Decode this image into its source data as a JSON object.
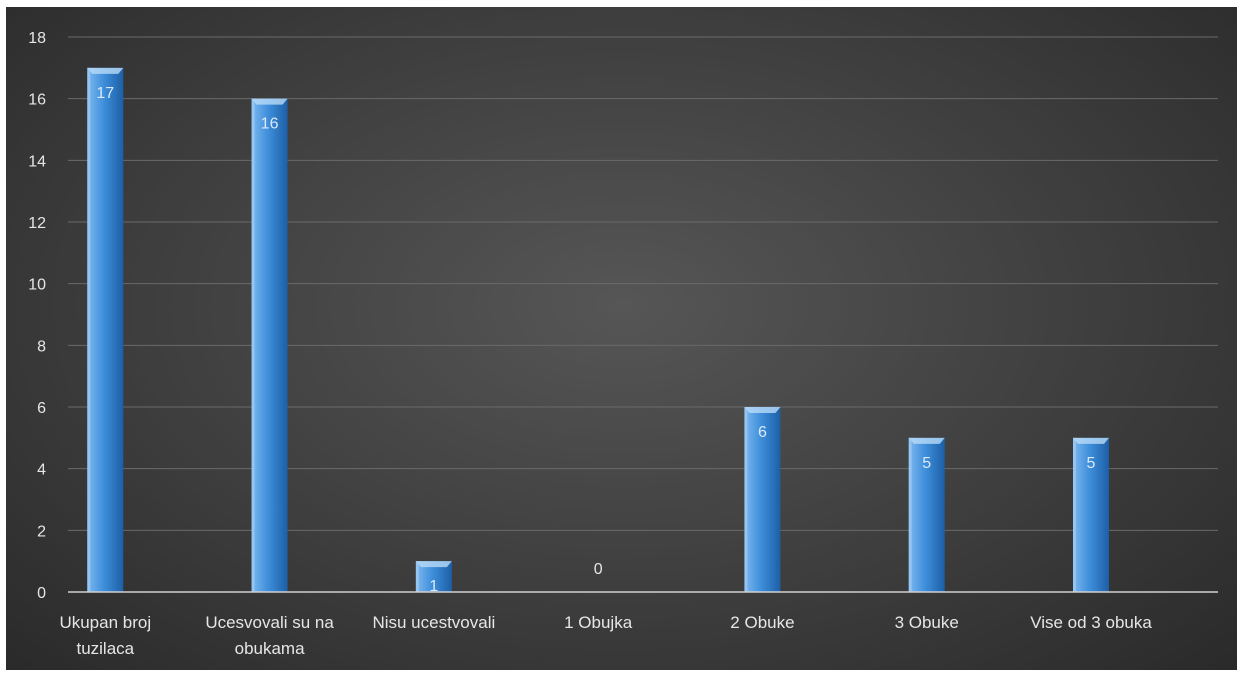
{
  "chart_data": {
    "type": "bar",
    "categories": [
      "Ukupan broj tuzilaca",
      "Ucesvovali su na obukama",
      "Nisu ucestvovali",
      "1 Obujka",
      "2 Obuke",
      "3 Obuke",
      "Vise od 3 obuka"
    ],
    "category_lines": [
      [
        "Ukupan broj",
        "tuzilaca"
      ],
      [
        "Ucesvovali su na",
        "obukama"
      ],
      [
        "Nisu ucestvovali"
      ],
      [
        "1 Obujka"
      ],
      [
        "2 Obuke"
      ],
      [
        "3 Obuke"
      ],
      [
        "Vise od 3 obuka"
      ]
    ],
    "values": [
      17,
      16,
      1,
      0,
      6,
      5,
      5
    ],
    "data_labels": [
      "17",
      "16",
      "1",
      "0",
      "6",
      "5",
      "5"
    ],
    "y_ticks": [
      "0",
      "2",
      "4",
      "6",
      "8",
      "10",
      "12",
      "14",
      "16",
      "18"
    ],
    "ylim": [
      0,
      18
    ],
    "grid": true,
    "legend": "none",
    "title": "",
    "xlabel": "",
    "ylabel": "",
    "colors": {
      "bar_light": "#7db8ee",
      "bar_mid": "#3f8fdc",
      "bar_dark": "#1c5fa6",
      "grid": "#6a6a6a",
      "axis_text": "#e6e6e6",
      "label_on_bar": "#dbe9f8",
      "label_off_bar": "#e6e6e6"
    }
  }
}
